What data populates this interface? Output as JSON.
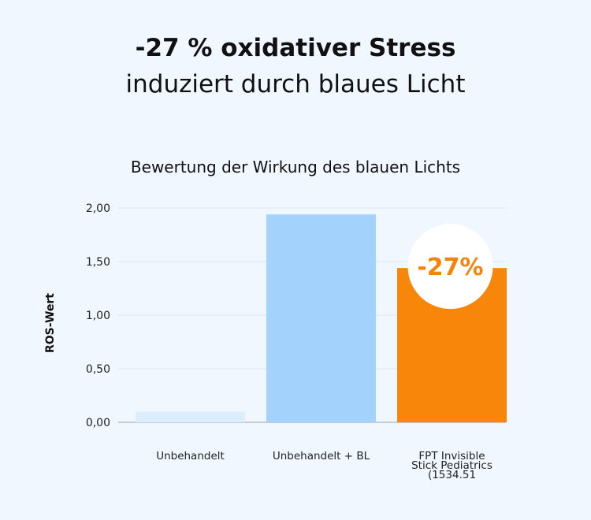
{
  "headline": {
    "line1": "-27 % oxidativer Stress",
    "line2": "induziert durch blaues Licht"
  },
  "chart_data": {
    "type": "bar",
    "title": "Bewertung der Wirkung des blauen Lichts",
    "ylabel": "ROS-Wert",
    "xlabel": "",
    "ylim": [
      0,
      2
    ],
    "yticks": [
      "0,00",
      "0,50",
      "1,00",
      "1,50",
      "2,00"
    ],
    "ytick_values": [
      0,
      0.5,
      1,
      1.5,
      2
    ],
    "grid": true,
    "categories": [
      [
        "Unbehandelt"
      ],
      [
        "Unbehandelt + BL"
      ],
      [
        "FPT Invisible",
        "Stick Pediatrics",
        "(1534.51"
      ]
    ],
    "values": [
      0.1,
      1.94,
      1.44
    ],
    "colors": [
      "#dceefe",
      "#a3d3fd",
      "#f7860b"
    ],
    "annotation": "-27%"
  }
}
